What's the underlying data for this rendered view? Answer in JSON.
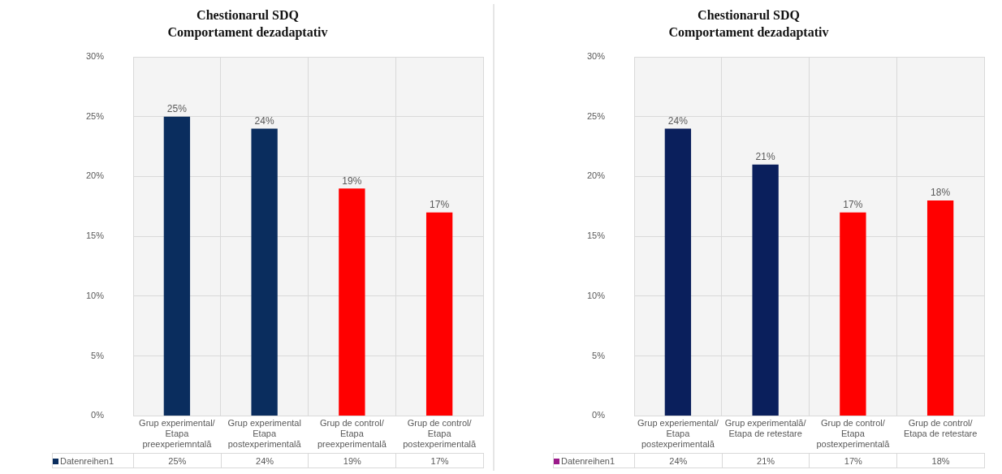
{
  "chart_data": [
    {
      "type": "bar",
      "title": "Chestionarul  SDQ\nComportament  dezadaptativ",
      "categories": [
        "Grup experimental/ Etapa preexperiemntală",
        "Grup experimental Etapa postexperimentală",
        "Grup de control/ Etapa preexperimentală",
        "Grup de control/ Etapa postexperimentală"
      ],
      "series": [
        {
          "name": "Datenreihen1",
          "color": "#0a2d5e",
          "colors": [
            "#0a2d5e",
            "#0a2d5e",
            "#ff0000",
            "#ff0000"
          ],
          "values": [
            25,
            24,
            19,
            17
          ],
          "value_labels": [
            "25%",
            "24%",
            "19%",
            "17%"
          ]
        }
      ],
      "ylim": [
        0,
        30
      ],
      "yticks": [
        {
          "value": 0,
          "label": "0%"
        },
        {
          "value": 5,
          "label": "5%"
        },
        {
          "value": 10,
          "label": "10%"
        },
        {
          "value": 15,
          "label": "15%"
        },
        {
          "value": 20,
          "label": "20%"
        },
        {
          "value": 25,
          "label": "25%"
        },
        {
          "value": 30,
          "label": "30%"
        }
      ],
      "grid": true,
      "legend": "bottom"
    },
    {
      "type": "bar",
      "title": "Chestionarul  SDQ\nComportament  dezadaptativ",
      "categories": [
        "Grup experiemental/ Etapa postexperimentală",
        "Grup experimentală/ Etapa de retestare",
        "Grup de control/ Etapa postexperimentală",
        "Grup de control/ Etapa de retestare"
      ],
      "series": [
        {
          "name": "Datenreihen1",
          "color": "#9b1a8a",
          "colors": [
            "#0a1f5c",
            "#0a1f5c",
            "#ff0000",
            "#ff0000"
          ],
          "values": [
            24,
            21,
            17,
            18
          ],
          "value_labels": [
            "24%",
            "21%",
            "17%",
            "18%"
          ]
        }
      ],
      "ylim": [
        0,
        30
      ],
      "yticks": [
        {
          "value": 0,
          "label": "0%"
        },
        {
          "value": 5,
          "label": "5%"
        },
        {
          "value": 10,
          "label": "10%"
        },
        {
          "value": 15,
          "label": "15%"
        },
        {
          "value": 20,
          "label": "20%"
        },
        {
          "value": 25,
          "label": "25%"
        },
        {
          "value": 30,
          "label": "30%"
        }
      ],
      "grid": true,
      "legend": "bottom"
    }
  ]
}
